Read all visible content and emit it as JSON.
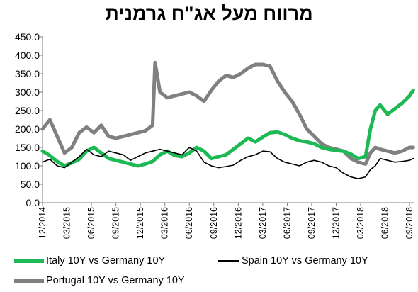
{
  "chart_data": {
    "type": "line",
    "title": "מרווח מעל אג\"ח גרמנית",
    "xlabel": "",
    "ylabel": "",
    "ylim": [
      0,
      450
    ],
    "y_ticks": [
      "0.0",
      "50.0",
      "100.0",
      "150.0",
      "200.0",
      "250.0",
      "300.0",
      "350.0",
      "400.0",
      "450.0"
    ],
    "x_ticks": [
      "12/2014",
      "03/2015",
      "06/2015",
      "09/2015",
      "12/2015",
      "03/2016",
      "06/2016",
      "09/2016",
      "12/2016",
      "03/2017",
      "06/2017",
      "09/2017",
      "12/2017",
      "03/2018",
      "06/2018",
      "09/2018"
    ],
    "x_range": [
      0,
      15.2
    ],
    "grid": false,
    "legend_position": "bottom",
    "series": [
      {
        "name": "Italy 10Y vs Germany 10Y",
        "color": "#1db954",
        "x": [
          0,
          0.3,
          0.6,
          0.9,
          1.2,
          1.5,
          1.8,
          2.1,
          2.4,
          2.7,
          3.0,
          3.3,
          3.6,
          3.9,
          4.2,
          4.5,
          4.8,
          5.1,
          5.4,
          5.7,
          6.0,
          6.3,
          6.6,
          6.9,
          7.2,
          7.5,
          7.8,
          8.1,
          8.4,
          8.7,
          9.0,
          9.3,
          9.6,
          9.9,
          10.2,
          10.5,
          10.8,
          11.1,
          11.4,
          11.7,
          12.0,
          12.3,
          12.6,
          12.9,
          13.2,
          13.4,
          13.6,
          13.8,
          14.1,
          14.4,
          14.7,
          15.0,
          15.15
        ],
        "values": [
          140,
          128,
          112,
          100,
          108,
          118,
          140,
          150,
          135,
          120,
          115,
          110,
          105,
          100,
          105,
          112,
          130,
          140,
          128,
          125,
          135,
          150,
          140,
          120,
          125,
          130,
          145,
          160,
          175,
          165,
          178,
          190,
          192,
          185,
          175,
          168,
          165,
          160,
          150,
          145,
          142,
          140,
          132,
          120,
          125,
          200,
          250,
          265,
          240,
          255,
          270,
          290,
          305
        ]
      },
      {
        "name": "Spain 10Y vs Germany 10Y",
        "color": "#000000",
        "x": [
          0,
          0.3,
          0.6,
          0.9,
          1.2,
          1.5,
          1.8,
          2.1,
          2.4,
          2.7,
          3.0,
          3.3,
          3.6,
          3.9,
          4.2,
          4.5,
          4.8,
          5.1,
          5.4,
          5.7,
          6.0,
          6.3,
          6.6,
          6.9,
          7.2,
          7.5,
          7.8,
          8.1,
          8.4,
          8.7,
          9.0,
          9.3,
          9.6,
          9.9,
          10.2,
          10.5,
          10.8,
          11.1,
          11.4,
          11.7,
          12.0,
          12.3,
          12.6,
          12.9,
          13.2,
          13.4,
          13.6,
          13.8,
          14.1,
          14.4,
          14.7,
          15.0,
          15.15
        ],
        "values": [
          110,
          118,
          100,
          95,
          110,
          125,
          145,
          130,
          125,
          140,
          135,
          130,
          115,
          125,
          135,
          140,
          145,
          140,
          135,
          130,
          150,
          140,
          110,
          100,
          95,
          98,
          102,
          115,
          125,
          130,
          140,
          138,
          120,
          110,
          105,
          100,
          110,
          115,
          110,
          100,
          95,
          80,
          70,
          65,
          70,
          90,
          100,
          120,
          115,
          110,
          112,
          115,
          120
        ]
      },
      {
        "name": "Portugal 10Y vs Germany 10Y",
        "color": "#808080",
        "x": [
          0,
          0.3,
          0.6,
          0.9,
          1.2,
          1.5,
          1.8,
          2.1,
          2.4,
          2.7,
          3.0,
          3.3,
          3.6,
          3.9,
          4.2,
          4.5,
          4.6,
          4.8,
          5.1,
          5.4,
          5.7,
          6.0,
          6.3,
          6.6,
          6.9,
          7.2,
          7.5,
          7.8,
          8.1,
          8.4,
          8.7,
          9.0,
          9.3,
          9.6,
          9.9,
          10.2,
          10.5,
          10.8,
          11.1,
          11.4,
          11.7,
          12.0,
          12.3,
          12.6,
          12.9,
          13.2,
          13.4,
          13.6,
          13.8,
          14.1,
          14.4,
          14.7,
          15.0,
          15.15
        ],
        "values": [
          200,
          225,
          180,
          135,
          150,
          190,
          205,
          190,
          210,
          180,
          175,
          180,
          185,
          190,
          195,
          210,
          380,
          300,
          285,
          290,
          295,
          300,
          290,
          275,
          305,
          330,
          345,
          340,
          350,
          365,
          375,
          375,
          370,
          330,
          300,
          275,
          240,
          200,
          180,
          160,
          150,
          145,
          140,
          120,
          110,
          105,
          135,
          150,
          145,
          140,
          135,
          140,
          150,
          150
        ]
      }
    ]
  }
}
